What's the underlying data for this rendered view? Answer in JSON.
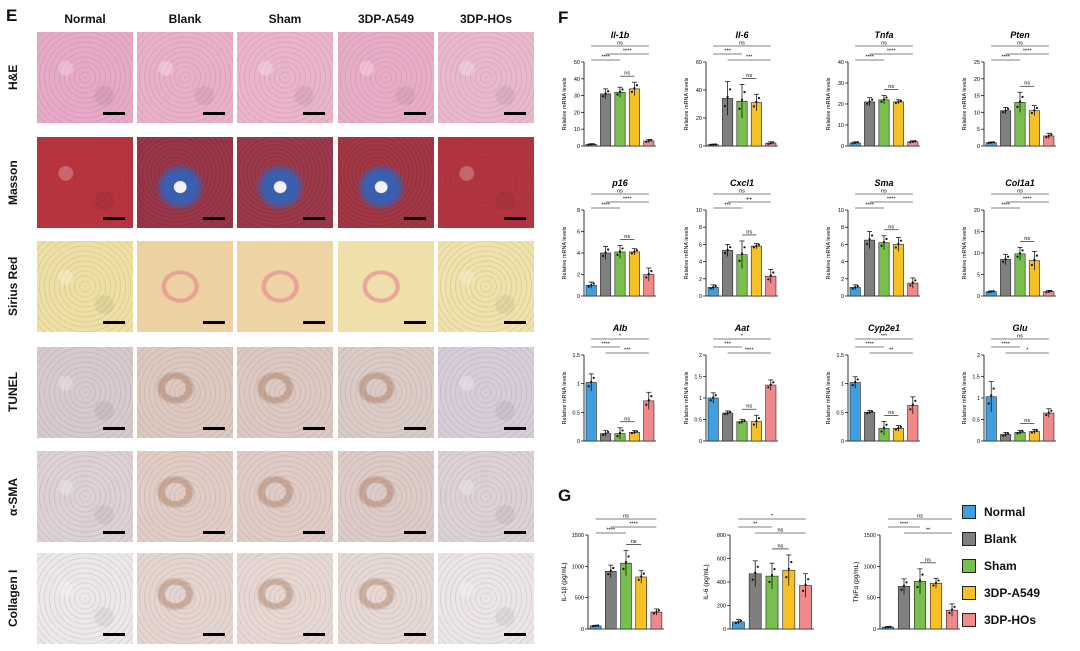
{
  "panel_e": {
    "letter": "E",
    "columns": [
      "Normal",
      "Blank",
      "Sham",
      "3DP-A549",
      "3DP-HOs"
    ],
    "rows": [
      "H&E",
      "Masson",
      "Sirius Red",
      "TUNEL",
      "α-SMA",
      "Collagen I"
    ],
    "tile_colors": {
      "H&E": [
        "#e6a9c6",
        "#e9b1c7",
        "#eab4c9",
        "#e8adc6",
        "#eab8cc"
      ],
      "Masson": [
        "#b8343d",
        "#9a3648",
        "#9c3a4b",
        "#a43744",
        "#b2343f"
      ],
      "Sirius Red": [
        "#eee0a3",
        "#edd1a2",
        "#eed3a4",
        "#efdfab",
        "#efe2aa"
      ],
      "TUNEL": [
        "#d8c9cd",
        "#dcc8bd",
        "#dcc9c0",
        "#dacbc4",
        "#d7cdd9"
      ],
      "α-SMA": [
        "#ddd1d3",
        "#e1cdc4",
        "#dfccc4",
        "#ddcbc6",
        "#ddd1d4"
      ],
      "Collagen I": [
        "#ece7e8",
        "#e4d6cf",
        "#e6d8d1",
        "#e6d8d2",
        "#ebe5e5"
      ]
    }
  },
  "panel_f": {
    "letter": "F"
  },
  "panel_g": {
    "letter": "G"
  },
  "legend": {
    "entries": [
      {
        "label": "Normal",
        "color": "#3f9fe0"
      },
      {
        "label": "Blank",
        "color": "#7f7f7f"
      },
      {
        "label": "Sham",
        "color": "#78bf4e"
      },
      {
        "label": "3DP-A549",
        "color": "#f5c127"
      },
      {
        "label": "3DP-HOs",
        "color": "#f08a8a"
      }
    ]
  },
  "chart_data": [
    {
      "type": "bar",
      "panel": "F",
      "title": "Il-1b",
      "ylabel": "Relative mRNA levels",
      "ylim": [
        0,
        50
      ],
      "yticks": [
        0,
        10,
        20,
        30,
        40,
        50
      ],
      "categories": [
        "Normal",
        "Blank",
        "Sham",
        "3DP-A549",
        "3DP-HOs"
      ],
      "values": [
        1,
        31,
        32,
        34,
        3
      ],
      "errors": [
        0.3,
        3,
        3,
        4,
        1
      ],
      "sig": [
        {
          "a": 0,
          "b": 4,
          "text": "ns"
        },
        {
          "a": 1,
          "b": 4,
          "text": "****"
        },
        {
          "a": 0,
          "b": 2,
          "text": "****"
        },
        {
          "a": 2,
          "b": 3,
          "text": "ns"
        }
      ]
    },
    {
      "type": "bar",
      "panel": "F",
      "title": "Il-6",
      "ylabel": "Relative mRNA levels",
      "ylim": [
        0,
        60
      ],
      "yticks": [
        0,
        20,
        40,
        60
      ],
      "categories": [
        "Normal",
        "Blank",
        "Sham",
        "3DP-A549",
        "3DP-HOs"
      ],
      "values": [
        1,
        34,
        32,
        31,
        2
      ],
      "errors": [
        0.3,
        12,
        12,
        6,
        1
      ],
      "sig": [
        {
          "a": 0,
          "b": 4,
          "text": "ns"
        },
        {
          "a": 0,
          "b": 2,
          "text": "***"
        },
        {
          "a": 1,
          "b": 4,
          "text": "***"
        },
        {
          "a": 2,
          "b": 3,
          "text": "ns"
        }
      ]
    },
    {
      "type": "bar",
      "panel": "F",
      "title": "Tnfa",
      "ylabel": "Relative mRNA levels",
      "ylim": [
        0,
        40
      ],
      "yticks": [
        0,
        10,
        20,
        30,
        40
      ],
      "categories": [
        "Normal",
        "Blank",
        "Sham",
        "3DP-A549",
        "3DP-HOs"
      ],
      "values": [
        1.5,
        21,
        22,
        21,
        2
      ],
      "errors": [
        0.5,
        2,
        2,
        1,
        0.5
      ],
      "sig": [
        {
          "a": 0,
          "b": 4,
          "text": "ns"
        },
        {
          "a": 1,
          "b": 4,
          "text": "****"
        },
        {
          "a": 0,
          "b": 2,
          "text": "****"
        },
        {
          "a": 2,
          "b": 3,
          "text": "ns"
        }
      ]
    },
    {
      "type": "bar",
      "panel": "F",
      "title": "Pten",
      "ylabel": "Relative mRNA levels",
      "ylim": [
        0,
        25
      ],
      "yticks": [
        0,
        5,
        10,
        15,
        20,
        25
      ],
      "categories": [
        "Normal",
        "Blank",
        "Sham",
        "3DP-A549",
        "3DP-HOs"
      ],
      "values": [
        1,
        10.5,
        13,
        10.5,
        3
      ],
      "errors": [
        0.2,
        1,
        3,
        1.5,
        0.8
      ],
      "sig": [
        {
          "a": 0,
          "b": 4,
          "text": "ns"
        },
        {
          "a": 1,
          "b": 4,
          "text": "****"
        },
        {
          "a": 0,
          "b": 2,
          "text": "****"
        },
        {
          "a": 2,
          "b": 3,
          "text": "ns"
        }
      ]
    },
    {
      "type": "bar",
      "panel": "F",
      "title": "p16",
      "ylabel": "Relative mRNA levels",
      "ylim": [
        0,
        8
      ],
      "yticks": [
        0,
        2,
        4,
        6,
        8
      ],
      "categories": [
        "Normal",
        "Blank",
        "Sham",
        "3DP-A549",
        "3DP-HOs"
      ],
      "values": [
        1,
        4,
        4.1,
        4.1,
        2
      ],
      "errors": [
        0.3,
        0.6,
        0.6,
        0.3,
        0.6
      ],
      "sig": [
        {
          "a": 0,
          "b": 4,
          "text": "ns"
        },
        {
          "a": 1,
          "b": 4,
          "text": "****"
        },
        {
          "a": 0,
          "b": 2,
          "text": "****"
        },
        {
          "a": 2,
          "b": 3,
          "text": "ns"
        }
      ]
    },
    {
      "type": "bar",
      "panel": "F",
      "title": "Cxcl1",
      "ylabel": "Relative mRNA levels",
      "ylim": [
        0,
        10
      ],
      "yticks": [
        0,
        2,
        4,
        6,
        8,
        10
      ],
      "categories": [
        "Normal",
        "Blank",
        "Sham",
        "3DP-A549",
        "3DP-HOs"
      ],
      "values": [
        1,
        5.3,
        4.8,
        5.8,
        2.3
      ],
      "errors": [
        0.3,
        0.7,
        1.6,
        0.3,
        0.8
      ],
      "sig": [
        {
          "a": 0,
          "b": 4,
          "text": "ns"
        },
        {
          "a": 1,
          "b": 4,
          "text": "++"
        },
        {
          "a": 0,
          "b": 2,
          "text": "***"
        },
        {
          "a": 2,
          "b": 3,
          "text": "ns"
        }
      ]
    },
    {
      "type": "bar",
      "panel": "F",
      "title": "Sma",
      "ylabel": "Relative mRNA levels",
      "ylim": [
        0,
        10
      ],
      "yticks": [
        0,
        2,
        4,
        6,
        8,
        10
      ],
      "categories": [
        "Normal",
        "Blank",
        "Sham",
        "3DP-A549",
        "3DP-HOs"
      ],
      "values": [
        1,
        6.5,
        6.2,
        6,
        1.5
      ],
      "errors": [
        0.3,
        1,
        0.8,
        0.8,
        0.6
      ],
      "sig": [
        {
          "a": 0,
          "b": 4,
          "text": "ns"
        },
        {
          "a": 1,
          "b": 4,
          "text": "****"
        },
        {
          "a": 0,
          "b": 2,
          "text": "****"
        },
        {
          "a": 2,
          "b": 3,
          "text": "ns"
        }
      ]
    },
    {
      "type": "bar",
      "panel": "F",
      "title": "Col1a1",
      "ylabel": "Relative mRNA levels",
      "ylim": [
        0,
        20
      ],
      "yticks": [
        0,
        5,
        10,
        15,
        20
      ],
      "categories": [
        "Normal",
        "Blank",
        "Sham",
        "3DP-A549",
        "3DP-HOs"
      ],
      "values": [
        1,
        8.5,
        9.8,
        8.2,
        1
      ],
      "errors": [
        0.2,
        1.2,
        1.5,
        2.2,
        0.3
      ],
      "sig": [
        {
          "a": 0,
          "b": 4,
          "text": "ns"
        },
        {
          "a": 1,
          "b": 4,
          "text": "****"
        },
        {
          "a": 0,
          "b": 2,
          "text": "****"
        },
        {
          "a": 2,
          "b": 3,
          "text": "ns"
        }
      ]
    },
    {
      "type": "bar",
      "panel": "F",
      "title": "Alb",
      "ylabel": "Relative mRNA levels",
      "ylim": [
        0,
        1.5
      ],
      "yticks": [
        0,
        0.5,
        1.0,
        1.5
      ],
      "categories": [
        "Normal",
        "Blank",
        "Sham",
        "3DP-A549",
        "3DP-HOs"
      ],
      "values": [
        1.02,
        0.13,
        0.13,
        0.15,
        0.7
      ],
      "errors": [
        0.15,
        0.05,
        0.1,
        0.03,
        0.15
      ],
      "sig": [
        {
          "a": 0,
          "b": 4,
          "text": "*"
        },
        {
          "a": 0,
          "b": 2,
          "text": "****"
        },
        {
          "a": 1,
          "b": 4,
          "text": "***"
        },
        {
          "a": 2,
          "b": 3,
          "text": "ns"
        }
      ]
    },
    {
      "type": "bar",
      "panel": "F",
      "title": "Aat",
      "ylabel": "Relative mRNA levels",
      "ylim": [
        0,
        2.0
      ],
      "yticks": [
        0,
        0.5,
        1.0,
        1.5,
        2.0
      ],
      "categories": [
        "Normal",
        "Blank",
        "Sham",
        "3DP-A549",
        "3DP-HOs"
      ],
      "values": [
        1,
        0.65,
        0.45,
        0.45,
        1.3
      ],
      "errors": [
        0.12,
        0.05,
        0.05,
        0.15,
        0.12
      ],
      "sig": [
        {
          "a": 0,
          "b": 4,
          "text": "*"
        },
        {
          "a": 0,
          "b": 2,
          "text": "***"
        },
        {
          "a": 1,
          "b": 4,
          "text": "****"
        },
        {
          "a": 2,
          "b": 3,
          "text": "ns"
        }
      ]
    },
    {
      "type": "bar",
      "panel": "F",
      "title": "Cyp2e1",
      "ylabel": "Relative mRNA levels",
      "ylim": [
        0,
        1.5
      ],
      "yticks": [
        0,
        0.5,
        1.0,
        1.5
      ],
      "categories": [
        "Normal",
        "Blank",
        "Sham",
        "3DP-A549",
        "3DP-HOs"
      ],
      "values": [
        1.02,
        0.5,
        0.22,
        0.22,
        0.62
      ],
      "errors": [
        0.1,
        0.03,
        0.12,
        0.05,
        0.15
      ],
      "sig": [
        {
          "a": 0,
          "b": 4,
          "text": "***"
        },
        {
          "a": 0,
          "b": 2,
          "text": "****"
        },
        {
          "a": 1,
          "b": 4,
          "text": "**"
        },
        {
          "a": 2,
          "b": 3,
          "text": "ns"
        }
      ]
    },
    {
      "type": "bar",
      "panel": "F",
      "title": "Glu",
      "ylabel": "Relative mRNA levels",
      "ylim": [
        0,
        2.0
      ],
      "yticks": [
        0,
        0.5,
        1.0,
        1.5,
        2.0
      ],
      "categories": [
        "Normal",
        "Blank",
        "Sham",
        "3DP-A549",
        "3DP-HOs"
      ],
      "values": [
        1.03,
        0.15,
        0.2,
        0.22,
        0.65
      ],
      "errors": [
        0.35,
        0.05,
        0.05,
        0.05,
        0.1
      ],
      "sig": [
        {
          "a": 0,
          "b": 4,
          "text": "ns"
        },
        {
          "a": 0,
          "b": 2,
          "text": "****"
        },
        {
          "a": 1,
          "b": 4,
          "text": "*"
        },
        {
          "a": 2,
          "b": 3,
          "text": "ns"
        }
      ]
    },
    {
      "type": "bar",
      "panel": "G",
      "title": "",
      "ylabel": "IL-1β (pg/mL)",
      "ylim": [
        0,
        1500
      ],
      "yticks": [
        0,
        500,
        1000,
        1500
      ],
      "categories": [
        "Normal",
        "Blank",
        "Sham",
        "3DP-A549",
        "3DP-HOs"
      ],
      "values": [
        50,
        920,
        1050,
        830,
        270
      ],
      "errors": [
        10,
        100,
        200,
        100,
        50
      ],
      "sig": [
        {
          "a": 0,
          "b": 4,
          "text": "ns"
        },
        {
          "a": 1,
          "b": 4,
          "text": "****"
        },
        {
          "a": 0,
          "b": 2,
          "text": "****"
        },
        {
          "a": 2,
          "b": 3,
          "text": "ns"
        }
      ]
    },
    {
      "type": "bar",
      "panel": "G",
      "title": "",
      "ylabel": "IL-6 (pg/mL)",
      "ylim": [
        0,
        800
      ],
      "yticks": [
        0,
        200,
        400,
        600,
        800
      ],
      "categories": [
        "Normal",
        "Blank",
        "Sham",
        "3DP-A549",
        "3DP-HOs"
      ],
      "values": [
        60,
        470,
        450,
        500,
        370
      ],
      "errors": [
        20,
        110,
        110,
        130,
        100
      ],
      "sig": [
        {
          "a": 0,
          "b": 4,
          "text": "*"
        },
        {
          "a": 0,
          "b": 2,
          "text": "**"
        },
        {
          "a": 1,
          "b": 4,
          "text": "ns"
        },
        {
          "a": 2,
          "b": 3,
          "text": "ns"
        }
      ]
    },
    {
      "type": "bar",
      "panel": "G",
      "title": "",
      "ylabel": "TNFα (pg/mL)",
      "ylim": [
        0,
        1500
      ],
      "yticks": [
        0,
        500,
        1000,
        1500
      ],
      "categories": [
        "Normal",
        "Blank",
        "Sham",
        "3DP-A549",
        "3DP-HOs"
      ],
      "values": [
        30,
        680,
        760,
        730,
        300
      ],
      "errors": [
        10,
        120,
        200,
        80,
        100
      ],
      "sig": [
        {
          "a": 0,
          "b": 4,
          "text": "ns"
        },
        {
          "a": 0,
          "b": 2,
          "text": "****"
        },
        {
          "a": 1,
          "b": 4,
          "text": "**"
        },
        {
          "a": 2,
          "b": 3,
          "text": "ns"
        }
      ]
    }
  ]
}
